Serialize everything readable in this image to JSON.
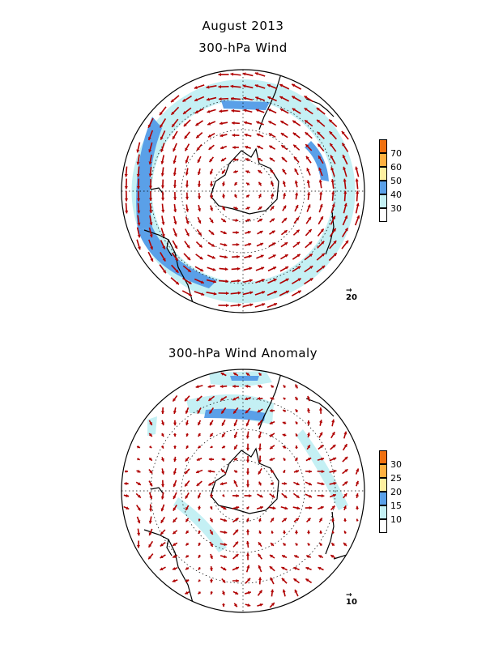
{
  "titles": {
    "main": "August 2013",
    "panel1": "300-hPa Wind",
    "panel2": "300-hPa Wind Anomaly"
  },
  "legends": {
    "panel1": {
      "labels": [
        "30",
        "40",
        "50",
        "60",
        "70"
      ],
      "colors": [
        "#ffffff",
        "#c4f0f4",
        "#5aa0e8",
        "#fff0a0",
        "#ffb040",
        "#f07010"
      ]
    },
    "panel2": {
      "labels": [
        "10",
        "15",
        "20",
        "25",
        "30"
      ],
      "colors": [
        "#ffffff",
        "#c4f0f4",
        "#5aa0e8",
        "#fff0a0",
        "#ffb040",
        "#f07010"
      ]
    }
  },
  "reference_vectors": {
    "panel1": "20",
    "panel2": "10"
  },
  "colors": {
    "vector": "#b00000",
    "light_blue": "#c4f0f4",
    "mid_blue": "#5aa0e8",
    "coast": "#000000"
  }
}
